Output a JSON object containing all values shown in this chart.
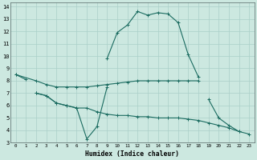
{
  "xlabel": "Humidex (Indice chaleur)",
  "bg_color": "#cce8e0",
  "grid_color": "#aacfc8",
  "line_color": "#1a6b60",
  "xlim": [
    -0.5,
    23.5
  ],
  "ylim": [
    3,
    14.3
  ],
  "xticks": [
    0,
    1,
    2,
    3,
    4,
    5,
    6,
    7,
    8,
    9,
    10,
    11,
    12,
    13,
    14,
    15,
    16,
    17,
    18,
    19,
    20,
    21,
    22,
    23
  ],
  "yticks": [
    3,
    4,
    5,
    6,
    7,
    8,
    9,
    10,
    11,
    12,
    13,
    14
  ],
  "lines": [
    {
      "x": [
        0,
        1,
        2,
        3,
        4,
        5,
        6,
        7,
        8,
        9,
        10,
        11,
        12,
        13,
        14,
        15,
        16,
        17,
        18
      ],
      "y": [
        8.5,
        8.1,
        null,
        null,
        null,
        null,
        null,
        null,
        null,
        9.8,
        11.9,
        12.5,
        13.6,
        13.3,
        13.5,
        13.4,
        12.7,
        10.1,
        8.3
      ],
      "marker": "+"
    },
    {
      "x": [
        0,
        2,
        3,
        4,
        5,
        6,
        7,
        8,
        9,
        10,
        11,
        12,
        13,
        14,
        15,
        16,
        17,
        18,
        19,
        20,
        21,
        22,
        23
      ],
      "y": [
        8.5,
        8.0,
        7.7,
        7.5,
        7.5,
        7.5,
        7.5,
        7.6,
        7.7,
        7.8,
        7.9,
        8.0,
        8.0,
        8.0,
        8.0,
        8.0,
        8.0,
        8.0,
        null,
        null,
        null,
        null,
        null
      ],
      "marker": "+"
    },
    {
      "x": [
        2,
        3,
        4,
        5,
        6,
        7,
        8,
        9,
        10,
        18,
        19,
        20,
        21,
        22,
        23
      ],
      "y": [
        7.0,
        6.8,
        6.2,
        6.0,
        5.8,
        3.3,
        4.3,
        7.5,
        null,
        null,
        6.5,
        5.0,
        4.4,
        3.9,
        null
      ],
      "marker": "+"
    },
    {
      "x": [
        2,
        3,
        4,
        5,
        6,
        7,
        8,
        9,
        10,
        11,
        12,
        13,
        14,
        15,
        16,
        17,
        18,
        19,
        20,
        21,
        22,
        23
      ],
      "y": [
        7.0,
        6.8,
        6.2,
        6.0,
        5.8,
        5.8,
        5.5,
        5.3,
        5.2,
        5.2,
        5.1,
        5.1,
        5.0,
        5.0,
        5.0,
        4.9,
        4.8,
        4.6,
        4.4,
        4.2,
        3.9,
        3.7
      ],
      "marker": "+"
    }
  ]
}
